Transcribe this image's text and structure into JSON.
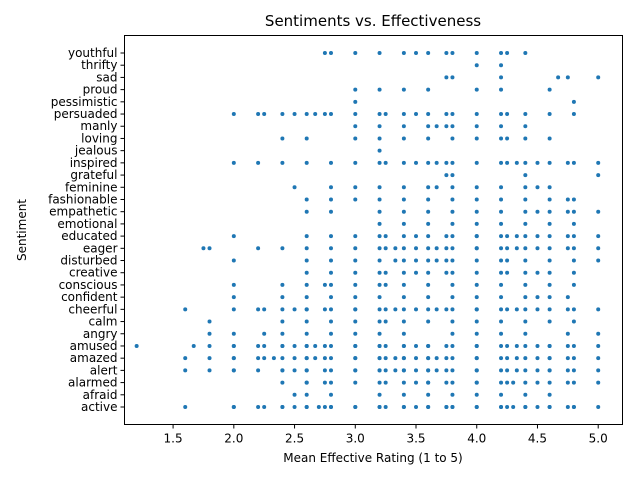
{
  "chart_data": {
    "type": "scatter",
    "title": "Sentiments vs. Effectiveness",
    "xlabel": "Mean Effective Rating (1 to 5)",
    "ylabel": "Sentiment",
    "xlim": [
      1.1,
      5.2
    ],
    "xticks": [
      "1.5",
      "2.0",
      "2.5",
      "3.0",
      "3.5",
      "4.0",
      "4.5",
      "5.0"
    ],
    "categories": [
      "active",
      "afraid",
      "alarmed",
      "alert",
      "amazed",
      "amused",
      "angry",
      "calm",
      "cheerful",
      "confident",
      "conscious",
      "creative",
      "disturbed",
      "eager",
      "educated",
      "emotional",
      "empathetic",
      "fashionable",
      "feminine",
      "grateful",
      "inspired",
      "jealous",
      "loving",
      "manly",
      "persuaded",
      "pessimistic",
      "proud",
      "sad",
      "thrifty",
      "youthful"
    ],
    "marker_color": "#1f77b4",
    "grid": false,
    "series": [
      {
        "category": "active",
        "x": [
          1.6,
          2.0,
          2.0,
          2.2,
          2.25,
          2.4,
          2.4,
          2.5,
          2.6,
          2.6,
          2.7,
          2.75,
          2.8,
          2.8,
          3.0,
          3.0,
          3.2,
          3.2,
          3.25,
          3.4,
          3.4,
          3.5,
          3.6,
          3.6,
          3.75,
          3.75,
          3.8,
          3.8,
          4.0,
          4.0,
          4.2,
          4.2,
          4.25,
          4.3,
          4.4,
          4.4,
          4.5,
          4.6,
          4.6,
          4.75,
          4.8,
          4.8,
          5.0
        ]
      },
      {
        "category": "afraid",
        "x": [
          2.5,
          2.6,
          2.8,
          3.2,
          3.4,
          3.6,
          3.8,
          4.0,
          4.2,
          4.4,
          4.6
        ]
      },
      {
        "category": "alarmed",
        "x": [
          2.4,
          2.6,
          2.6,
          2.75,
          2.8,
          3.0,
          3.2,
          3.25,
          3.4,
          3.5,
          3.6,
          3.6,
          3.75,
          3.8,
          4.0,
          4.0,
          4.2,
          4.25,
          4.3,
          4.4,
          4.5,
          4.6,
          4.75,
          4.8,
          5.0
        ]
      },
      {
        "category": "alert",
        "x": [
          1.6,
          1.8,
          2.0,
          2.0,
          2.2,
          2.4,
          2.4,
          2.5,
          2.6,
          2.6,
          2.75,
          2.8,
          3.0,
          3.0,
          3.2,
          3.2,
          3.25,
          3.33,
          3.4,
          3.4,
          3.5,
          3.6,
          3.6,
          3.67,
          3.75,
          3.8,
          4.0,
          4.0,
          4.2,
          4.25,
          4.33,
          4.4,
          4.5,
          4.6,
          4.6,
          4.75,
          4.8,
          5.0
        ]
      },
      {
        "category": "amazed",
        "x": [
          1.6,
          1.8,
          2.0,
          2.0,
          2.2,
          2.25,
          2.33,
          2.4,
          2.5,
          2.6,
          2.6,
          2.67,
          2.75,
          2.8,
          3.0,
          3.0,
          3.2,
          3.2,
          3.25,
          3.33,
          3.4,
          3.4,
          3.5,
          3.6,
          3.6,
          3.67,
          3.75,
          3.8,
          4.0,
          4.0,
          4.2,
          4.25,
          4.33,
          4.4,
          4.5,
          4.6,
          4.6,
          4.75,
          4.8,
          5.0
        ]
      },
      {
        "category": "amused",
        "x": [
          1.2,
          1.67,
          1.8,
          2.0,
          2.0,
          2.2,
          2.25,
          2.4,
          2.4,
          2.5,
          2.6,
          2.6,
          2.67,
          2.75,
          2.8,
          3.0,
          3.0,
          3.2,
          3.2,
          3.25,
          3.4,
          3.4,
          3.5,
          3.6,
          3.6,
          3.75,
          3.8,
          4.0,
          4.0,
          4.2,
          4.25,
          4.33,
          4.4,
          4.5,
          4.6,
          4.6,
          4.75,
          4.8,
          5.0
        ]
      },
      {
        "category": "angry",
        "x": [
          1.8,
          2.0,
          2.25,
          2.4,
          2.6,
          2.8,
          3.0,
          3.2,
          3.4,
          3.8,
          4.0,
          4.2,
          4.4,
          4.75,
          5.0
        ]
      },
      {
        "category": "calm",
        "x": [
          1.8,
          2.4,
          2.6,
          2.8,
          3.0,
          3.2,
          3.25,
          3.4,
          3.6,
          3.8,
          4.0,
          4.2,
          4.4,
          4.6,
          4.8
        ]
      },
      {
        "category": "cheerful",
        "x": [
          1.6,
          2.0,
          2.2,
          2.25,
          2.4,
          2.5,
          2.6,
          2.6,
          2.75,
          2.8,
          3.0,
          3.0,
          3.2,
          3.25,
          3.33,
          3.4,
          3.5,
          3.6,
          3.67,
          3.75,
          3.8,
          4.0,
          4.0,
          4.2,
          4.25,
          4.33,
          4.4,
          4.5,
          4.6,
          4.75,
          4.8,
          5.0
        ]
      },
      {
        "category": "confident",
        "x": [
          2.0,
          2.4,
          2.6,
          2.8,
          3.0,
          3.2,
          3.4,
          3.6,
          3.8,
          4.0,
          4.2,
          4.4,
          4.5,
          4.6,
          4.75
        ]
      },
      {
        "category": "conscious",
        "x": [
          2.0,
          2.4,
          2.6,
          2.75,
          2.8,
          3.0,
          3.2,
          3.25,
          3.4,
          3.6,
          3.8,
          4.0,
          4.2,
          4.4,
          4.6,
          4.8
        ]
      },
      {
        "category": "creative",
        "x": [
          2.6,
          2.8,
          3.0,
          3.2,
          3.25,
          3.4,
          3.5,
          3.6,
          3.75,
          3.8,
          4.0,
          4.2,
          4.25,
          4.4,
          4.5,
          4.6,
          4.8
        ]
      },
      {
        "category": "disturbed",
        "x": [
          2.0,
          2.6,
          2.8,
          3.0,
          3.2,
          3.33,
          3.4,
          3.5,
          3.6,
          3.67,
          3.75,
          3.8,
          4.0,
          4.2,
          4.25,
          4.4,
          4.6,
          4.8,
          5.0
        ]
      },
      {
        "category": "eager",
        "x": [
          1.75,
          1.8,
          2.2,
          2.4,
          2.6,
          2.8,
          3.0,
          3.2,
          3.25,
          3.33,
          3.4,
          3.5,
          3.6,
          3.67,
          3.75,
          3.8,
          4.0,
          4.0,
          4.2,
          4.25,
          4.33,
          4.4,
          4.5,
          4.6,
          4.75,
          4.8,
          5.0
        ]
      },
      {
        "category": "educated",
        "x": [
          2.0,
          2.6,
          2.8,
          3.0,
          3.2,
          3.25,
          3.4,
          3.5,
          3.6,
          3.75,
          3.8,
          4.0,
          4.0,
          4.2,
          4.25,
          4.33,
          4.4,
          4.5,
          4.6,
          4.75,
          4.8,
          5.0
        ]
      },
      {
        "category": "emotional",
        "x": [
          3.2,
          3.4,
          3.6,
          3.8,
          4.0,
          4.2,
          4.4,
          4.6,
          4.8
        ]
      },
      {
        "category": "empathetic",
        "x": [
          2.6,
          2.8,
          3.2,
          3.4,
          3.6,
          3.8,
          4.0,
          4.2,
          4.4,
          4.5,
          4.6,
          4.75,
          4.8,
          5.0
        ]
      },
      {
        "category": "fashionable",
        "x": [
          2.6,
          2.8,
          3.0,
          3.2,
          3.4,
          3.6,
          3.8,
          4.0,
          4.2,
          4.4,
          4.6,
          4.75,
          4.8
        ]
      },
      {
        "category": "feminine",
        "x": [
          2.5,
          2.8,
          3.0,
          3.2,
          3.4,
          3.6,
          3.67,
          3.8,
          4.0,
          4.2,
          4.4,
          4.5,
          4.6
        ]
      },
      {
        "category": "grateful",
        "x": [
          3.75,
          3.8,
          4.4,
          5.0
        ]
      },
      {
        "category": "inspired",
        "x": [
          2.0,
          2.2,
          2.4,
          2.6,
          2.8,
          3.0,
          3.2,
          3.25,
          3.4,
          3.5,
          3.6,
          3.67,
          3.75,
          3.8,
          4.0,
          4.2,
          4.25,
          4.33,
          4.4,
          4.5,
          4.6,
          4.75,
          4.8,
          5.0
        ]
      },
      {
        "category": "jealous",
        "x": [
          3.2
        ]
      },
      {
        "category": "loving",
        "x": [
          2.4,
          2.6,
          3.0,
          3.2,
          3.4,
          3.6,
          3.8,
          4.0,
          4.2,
          4.25,
          4.4,
          4.6
        ]
      },
      {
        "category": "manly",
        "x": [
          3.0,
          3.2,
          3.4,
          3.6,
          3.67,
          3.75,
          3.8,
          4.0,
          4.2,
          4.4
        ]
      },
      {
        "category": "persuaded",
        "x": [
          2.0,
          2.2,
          2.25,
          2.4,
          2.5,
          2.6,
          2.67,
          2.75,
          2.8,
          3.0,
          3.2,
          3.25,
          3.4,
          3.5,
          3.6,
          3.75,
          3.8,
          4.0,
          4.2,
          4.25,
          4.4,
          4.6,
          4.8
        ]
      },
      {
        "category": "pessimistic",
        "x": [
          3.0,
          4.8
        ]
      },
      {
        "category": "proud",
        "x": [
          3.0,
          3.2,
          3.4,
          3.6,
          4.0,
          4.2,
          4.6
        ]
      },
      {
        "category": "sad",
        "x": [
          3.75,
          3.8,
          4.2,
          4.67,
          4.75,
          5.0
        ]
      },
      {
        "category": "thrifty",
        "x": [
          4.0,
          4.2
        ]
      },
      {
        "category": "youthful",
        "x": [
          2.75,
          2.8,
          3.0,
          3.2,
          3.4,
          3.5,
          3.6,
          3.75,
          3.8,
          4.0,
          4.2,
          4.25,
          4.4
        ]
      }
    ]
  }
}
